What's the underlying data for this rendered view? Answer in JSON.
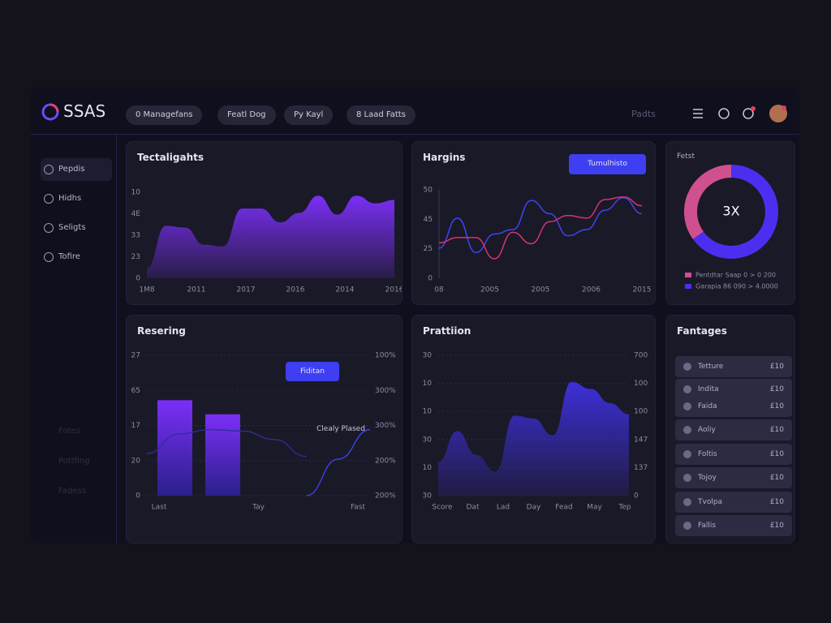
{
  "brand": "SSAS",
  "filters": [
    "0 Managefans",
    "Featl Dog",
    "Py Kayl",
    "8 Laad Fatts"
  ],
  "search": "Padts",
  "sidebar": {
    "items": [
      "Pepdis",
      "Hidhs",
      "Seligts",
      "Tofire"
    ],
    "faded": [
      "Fotes",
      "Pottfing",
      "Fadess"
    ]
  },
  "panel1": {
    "title": "Tectaligahts",
    "chart": {
      "type": "area",
      "color": "#7b2ff7",
      "y_labels": [
        "10",
        "4E",
        "33",
        "23",
        "0"
      ],
      "x_labels": [
        "1M8",
        "2011",
        "2017",
        "2016",
        "2014",
        "2016"
      ],
      "ylim": [
        0,
        100
      ],
      "values": [
        12,
        61,
        59,
        39,
        37,
        81,
        81,
        65,
        76,
        96,
        74,
        96,
        87,
        91
      ]
    }
  },
  "panel2": {
    "title": "Hargins",
    "button": "Tumulhisto",
    "chart": {
      "type": "line",
      "y_labels": [
        "50",
        "45",
        "25",
        "0"
      ],
      "x_labels": [
        "08",
        "2005",
        "2005",
        "2006",
        "2015"
      ],
      "ylim": [
        0,
        100
      ],
      "series": [
        {
          "color": "#3d46f2",
          "values": [
            34,
            68,
            29,
            50,
            55,
            88,
            73,
            48,
            55,
            77,
            91,
            73
          ]
        },
        {
          "color": "#d9336c",
          "values": [
            40,
            46,
            46,
            22,
            52,
            39,
            64,
            71,
            68,
            89,
            92,
            82
          ]
        }
      ]
    }
  },
  "panel3": {
    "title": "Fetst",
    "center": "3X",
    "chart": {
      "type": "donut",
      "series": [
        {
          "name": "Garapia 86 090 > 4.0000",
          "color": "#4b2ff0",
          "value": 65
        },
        {
          "name": "Pentdtar Saap 0 > 0 200",
          "color": "#d0508f",
          "value": 35
        }
      ]
    }
  },
  "panel4": {
    "title": "Resering",
    "badge": "Fiditan",
    "annotation": "Clealy Plased",
    "chart": {
      "type": "bar",
      "y_labels": [
        "27",
        "65",
        "17",
        "20",
        "0"
      ],
      "y2_labels": [
        "100%",
        "300%",
        "300%",
        "200%",
        "200%"
      ],
      "x_labels": [
        "Last",
        "Tay",
        "Fast"
      ],
      "ylim": [
        0,
        100
      ],
      "bars": [
        68,
        58
      ],
      "bar_color": "#7b2ff7",
      "series": [
        {
          "color": "#2d2f9a",
          "values": [
            30,
            44,
            47,
            46,
            40,
            28,
            null,
            null
          ]
        },
        {
          "color": "#3d46f2",
          "values": [
            null,
            null,
            null,
            null,
            null,
            0,
            26,
            47
          ]
        }
      ]
    }
  },
  "panel5": {
    "title": "Prattiion",
    "chart": {
      "type": "area",
      "color": "#3d2fd8",
      "y_labels": [
        "30",
        "10",
        "10",
        "30",
        "10",
        "30"
      ],
      "y2_labels": [
        "700",
        "100",
        "100",
        "147",
        "137",
        "0"
      ],
      "x_labels": [
        "Score",
        "Dat",
        "Lad",
        "Day",
        "Fead",
        "May",
        "Tep"
      ],
      "ylim": [
        0,
        100
      ],
      "values": [
        24,
        46,
        29,
        17,
        57,
        55,
        43,
        81,
        76,
        66,
        58
      ]
    }
  },
  "panel6": {
    "title": "Fantages",
    "rows": [
      {
        "label": "Tetture",
        "value": "£10"
      },
      {
        "label": "Indita",
        "value": "£10"
      },
      {
        "label": "Faida",
        "value": "£10"
      },
      {
        "label": "Aoliy",
        "value": "£10"
      },
      {
        "label": "Foltis",
        "value": "£10"
      },
      {
        "label": "Tojoy",
        "value": "£10"
      },
      {
        "label": "Tvolpa",
        "value": "£10"
      },
      {
        "label": "Fallis",
        "value": "£10"
      }
    ]
  }
}
